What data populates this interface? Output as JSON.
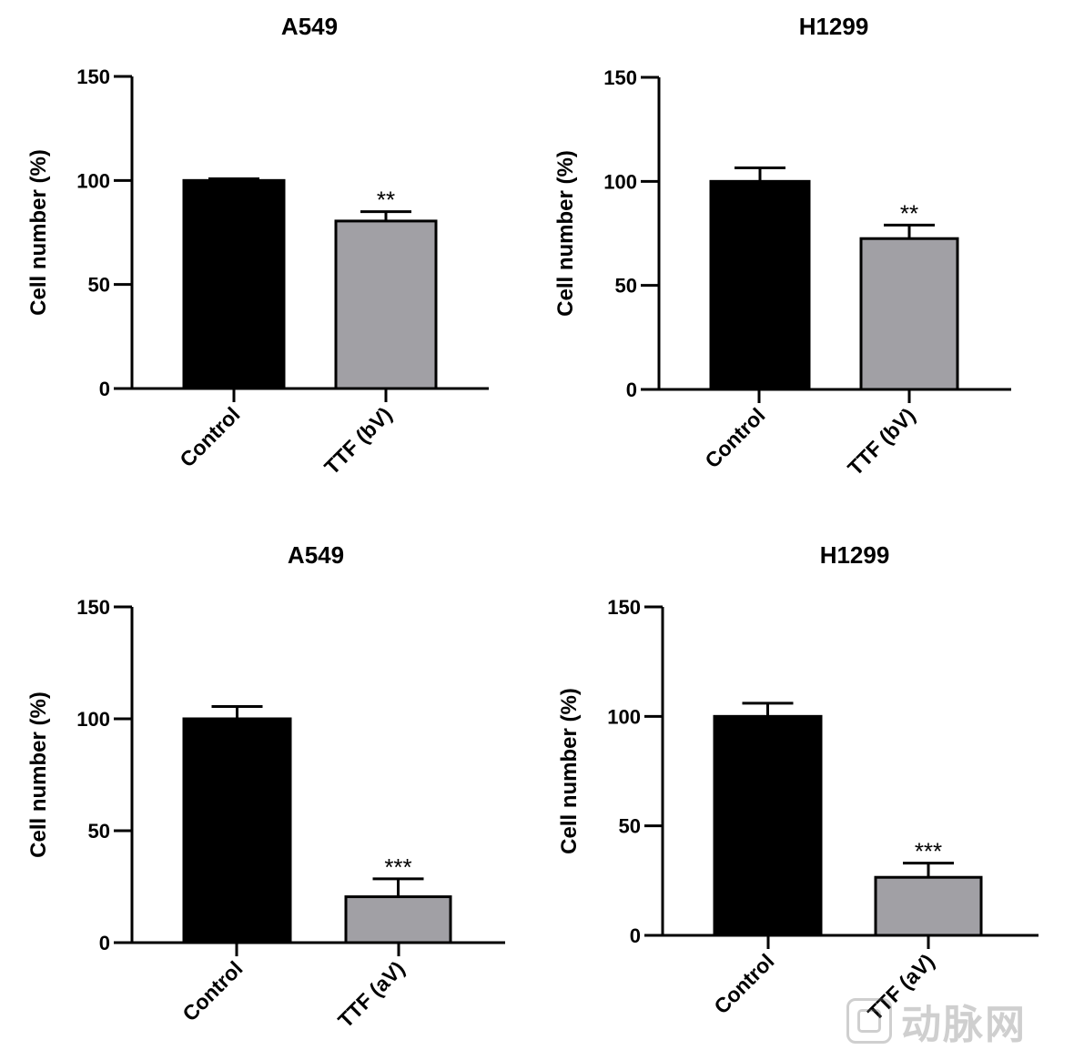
{
  "chart_data": [
    {
      "type": "bar",
      "title": "A549",
      "ylabel": "Cell number (%)",
      "categories": [
        "Control",
        "TTF (bV)"
      ],
      "values": [
        100,
        80.5
      ],
      "errors": [
        0.8,
        4.5
      ],
      "significance": [
        "",
        "**"
      ],
      "ylim": [
        0,
        150
      ],
      "yticks": [
        0,
        50,
        100,
        150
      ],
      "bar_colors": [
        "#000000",
        "#a1a0a5"
      ]
    },
    {
      "type": "bar",
      "title": "H1299",
      "ylabel": "Cell number (%)",
      "categories": [
        "Control",
        "TTF (bV)"
      ],
      "values": [
        100,
        72.5
      ],
      "errors": [
        6.5,
        6.5
      ],
      "significance": [
        "",
        "**"
      ],
      "ylim": [
        0,
        150
      ],
      "yticks": [
        0,
        50,
        100,
        150
      ],
      "bar_colors": [
        "#000000",
        "#a1a0a5"
      ]
    },
    {
      "type": "bar",
      "title": "A549",
      "ylabel": "Cell number (%)",
      "categories": [
        "Control",
        "TTF (aV)"
      ],
      "values": [
        100,
        20.5
      ],
      "errors": [
        5.5,
        8
      ],
      "significance": [
        "",
        "***"
      ],
      "ylim": [
        0,
        150
      ],
      "yticks": [
        0,
        50,
        100,
        150
      ],
      "bar_colors": [
        "#000000",
        "#a1a0a5"
      ]
    },
    {
      "type": "bar",
      "title": "H1299",
      "ylabel": "Cell number (%)",
      "categories": [
        "Control",
        "TTF (aV)"
      ],
      "values": [
        100,
        26.5
      ],
      "errors": [
        6,
        6.5
      ],
      "significance": [
        "",
        "***"
      ],
      "ylim": [
        0,
        150
      ],
      "yticks": [
        0,
        50,
        100,
        150
      ],
      "bar_colors": [
        "#000000",
        "#a1a0a5"
      ]
    }
  ],
  "watermark": {
    "text": "动脉网",
    "icon": "logo-badge-icon"
  }
}
